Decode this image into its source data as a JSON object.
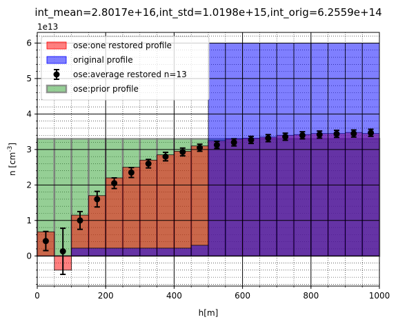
{
  "chart_data": {
    "type": "bar",
    "title": "int_mean=2.8017e+16,int_std=1.0198e+15,int_orig=6.2559e+14",
    "xlabel": "h[m]",
    "ylabel": "n [cm^-3]",
    "offset_label": "1e13",
    "xlim": [
      0,
      1000
    ],
    "ylim": [
      -0.85,
      6.3
    ],
    "x_ticks": [
      0,
      200,
      400,
      600,
      800,
      1000
    ],
    "x_tick_labels": [
      "0",
      "200",
      "400",
      "600",
      "800",
      "1000"
    ],
    "y_ticks": [
      0,
      1,
      2,
      3,
      4,
      5,
      6
    ],
    "y_tick_labels": [
      "0",
      "1",
      "2",
      "3",
      "4",
      "5",
      "6"
    ],
    "grid": true,
    "legend_position": "top-left",
    "bin_edges": [
      0,
      50,
      100,
      150,
      200,
      250,
      300,
      350,
      400,
      450,
      500,
      550,
      600,
      650,
      700,
      750,
      800,
      850,
      900,
      950,
      1000
    ],
    "bin_centers": [
      25,
      75,
      125,
      175,
      225,
      275,
      325,
      375,
      425,
      475,
      525,
      575,
      625,
      675,
      725,
      775,
      825,
      875,
      925,
      975
    ],
    "series": [
      {
        "name": "ose:prior profile",
        "kind": "prior",
        "color": "#2ca02c",
        "values": [
          3.3,
          3.3,
          3.3,
          3.3,
          3.3,
          3.3,
          3.3,
          3.3,
          3.3,
          3.3,
          3.3,
          3.3,
          3.3,
          3.3,
          3.3,
          3.3,
          3.3,
          3.3,
          3.3,
          3.3
        ]
      },
      {
        "name": "ose:one restored profile",
        "kind": "restored",
        "color": "#ff0000",
        "values": [
          0.68,
          -0.4,
          1.15,
          1.7,
          2.2,
          2.5,
          2.7,
          2.85,
          2.95,
          3.1,
          3.25,
          3.3,
          3.32,
          3.35,
          3.4,
          3.42,
          3.45,
          3.45,
          3.48,
          3.45
        ]
      },
      {
        "name": "original profile",
        "kind": "original",
        "color": "#0000ff",
        "values": [
          0.0,
          0.0,
          0.22,
          0.22,
          0.22,
          0.22,
          0.22,
          0.22,
          0.22,
          0.3,
          6.0,
          6.0,
          6.0,
          6.0,
          6.0,
          6.0,
          6.0,
          6.0,
          6.0,
          6.0
        ]
      },
      {
        "name": "ose:average restored n=13",
        "kind": "average",
        "color": "#000000",
        "values": [
          0.42,
          0.13,
          1.0,
          1.6,
          2.05,
          2.35,
          2.6,
          2.8,
          2.93,
          3.05,
          3.13,
          3.2,
          3.27,
          3.32,
          3.36,
          3.4,
          3.42,
          3.44,
          3.45,
          3.47
        ],
        "errors": [
          0.27,
          0.65,
          0.25,
          0.22,
          0.15,
          0.14,
          0.12,
          0.12,
          0.11,
          0.1,
          0.1,
          0.1,
          0.1,
          0.1,
          0.1,
          0.1,
          0.1,
          0.1,
          0.1,
          0.1
        ]
      }
    ],
    "legend_order": [
      "ose:one restored profile",
      "original profile",
      "ose:average restored n=13",
      "ose:prior profile"
    ]
  }
}
